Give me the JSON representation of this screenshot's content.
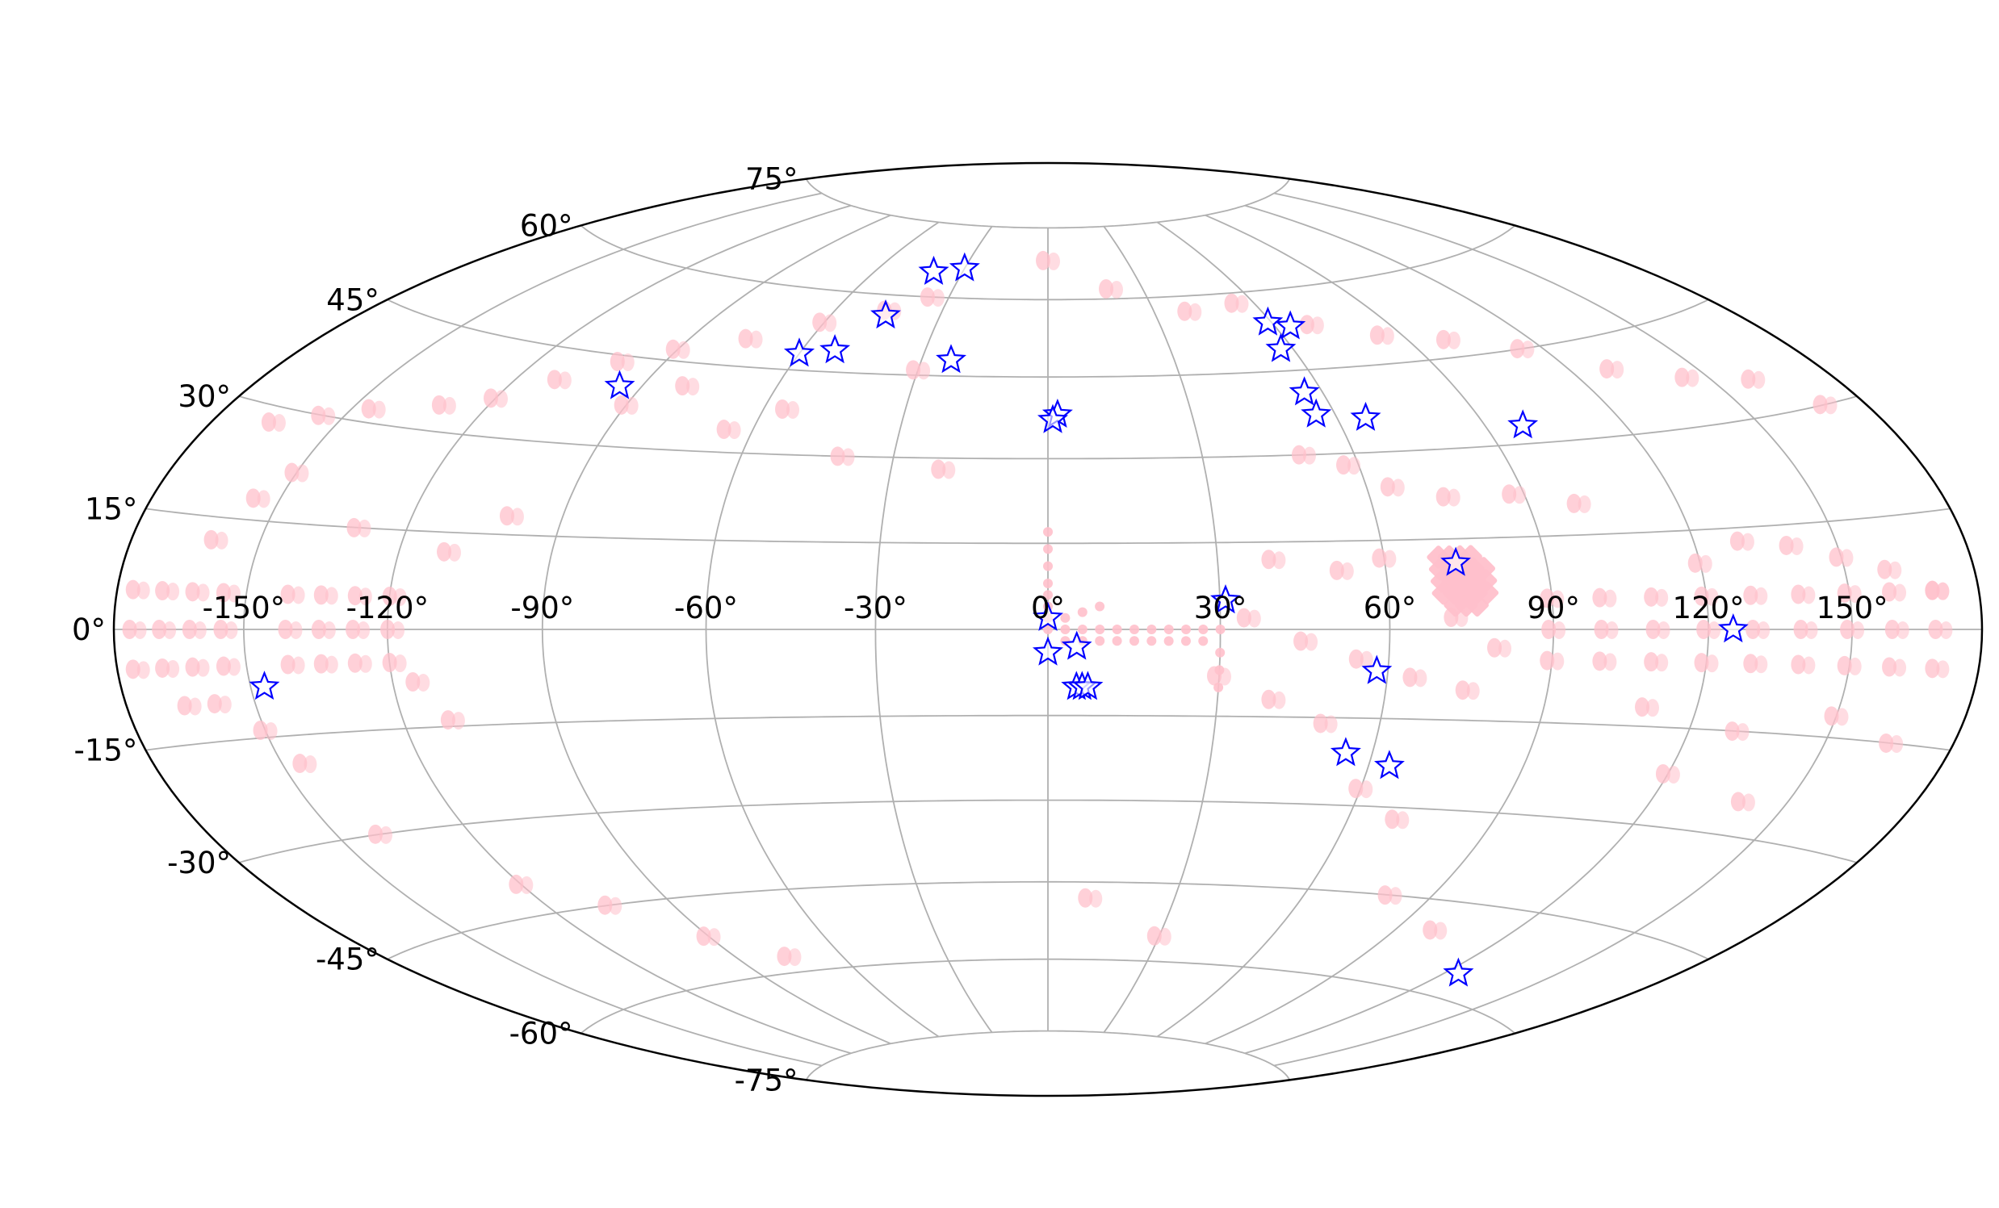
{
  "chart_data": {
    "type": "scatter",
    "projection": "aitoff-hammer",
    "title": "",
    "xlabel": "",
    "ylabel": "",
    "grid": true,
    "legend": "none",
    "xlim": [
      -180,
      180
    ],
    "ylim": [
      -90,
      90
    ],
    "lon_ticks": [
      "-150°",
      "-120°",
      "-90°",
      "-60°",
      "-30°",
      "0°",
      "30°",
      "60°",
      "90°",
      "120°",
      "150°"
    ],
    "lon_tick_values": [
      -150,
      -120,
      -90,
      -60,
      -30,
      0,
      30,
      60,
      90,
      120,
      150
    ],
    "lat_ticks": [
      "-75°",
      "-60°",
      "-45°",
      "-30°",
      "-15°",
      "0°",
      "15°",
      "30°",
      "45°",
      "60°",
      "75°"
    ],
    "lat_tick_values": [
      -75,
      -60,
      -45,
      -30,
      -15,
      0,
      15,
      30,
      45,
      60,
      75
    ],
    "colors": {
      "fields": "#ffc0cb",
      "stars_edge": "#0000ff",
      "grid": "#b0b0b0",
      "frame": "#000000"
    },
    "series": [
      {
        "marker": "ellipse",
        "color": "#ffc0cb",
        "points": [
          [
            -175,
            5
          ],
          [
            -168,
            5
          ],
          [
            -161,
            5
          ],
          [
            -154,
            5
          ],
          [
            -140,
            5
          ],
          [
            -133,
            5
          ],
          [
            -126,
            5
          ],
          [
            -119,
            5
          ],
          [
            -175,
            0
          ],
          [
            -168,
            0
          ],
          [
            -161,
            0
          ],
          [
            -154,
            0
          ],
          [
            -140,
            0
          ],
          [
            -133,
            0
          ],
          [
            -126,
            0
          ],
          [
            -119,
            0
          ],
          [
            -175,
            -5
          ],
          [
            -168,
            -5
          ],
          [
            -161,
            -5
          ],
          [
            -154,
            -5
          ],
          [
            -140,
            -5
          ],
          [
            -133,
            -5
          ],
          [
            -126,
            -5
          ],
          [
            -119,
            -5
          ],
          [
            -165,
            -10
          ],
          [
            -158,
            -10
          ],
          [
            -150,
            -14
          ],
          [
            -145,
            -19
          ],
          [
            -160,
            12
          ],
          [
            -155,
            18
          ],
          [
            -150,
            22
          ],
          [
            -165,
            28
          ],
          [
            -155,
            30
          ],
          [
            -145,
            32
          ],
          [
            -130,
            34
          ],
          [
            -120,
            36
          ],
          [
            -110,
            40
          ],
          [
            -100,
            44
          ],
          [
            -90,
            47
          ],
          [
            -75,
            50
          ],
          [
            -60,
            54
          ],
          [
            -45,
            57
          ],
          [
            -35,
            60
          ],
          [
            -130,
            15
          ],
          [
            -110,
            12
          ],
          [
            -100,
            18
          ],
          [
            -115,
            -8
          ],
          [
            -110,
            -14
          ],
          [
            -90,
            37
          ],
          [
            -80,
            41
          ],
          [
            -65,
            34
          ],
          [
            -55,
            38
          ],
          [
            -40,
            30
          ],
          [
            -20,
            28
          ],
          [
            -30,
            46
          ],
          [
            -120,
            -40
          ],
          [
            -105,
            -45
          ],
          [
            -90,
            -52
          ],
          [
            -75,
            -57
          ],
          [
            -140,
            -30
          ],
          [
            0,
            68
          ],
          [
            20,
            62
          ],
          [
            40,
            57
          ],
          [
            55,
            58
          ],
          [
            70,
            53
          ],
          [
            85,
            50
          ],
          [
            100,
            48
          ],
          [
            115,
            45
          ],
          [
            130,
            40
          ],
          [
            145,
            37
          ],
          [
            160,
            35
          ],
          [
            170,
            30
          ],
          [
            50,
            30
          ],
          [
            58,
            28
          ],
          [
            65,
            24
          ],
          [
            75,
            22
          ],
          [
            88,
            22
          ],
          [
            100,
            20
          ],
          [
            120,
            10
          ],
          [
            130,
            13
          ],
          [
            140,
            12
          ],
          [
            150,
            10
          ],
          [
            160,
            8
          ],
          [
            170,
            5
          ],
          [
            90,
            5
          ],
          [
            100,
            5
          ],
          [
            110,
            5
          ],
          [
            120,
            5
          ],
          [
            130,
            5
          ],
          [
            140,
            5
          ],
          [
            150,
            5
          ],
          [
            160,
            5
          ],
          [
            170,
            5
          ],
          [
            90,
            0
          ],
          [
            100,
            0
          ],
          [
            110,
            0
          ],
          [
            120,
            0
          ],
          [
            130,
            0
          ],
          [
            140,
            0
          ],
          [
            150,
            0
          ],
          [
            160,
            0
          ],
          [
            170,
            0
          ],
          [
            90,
            -5
          ],
          [
            100,
            -5
          ],
          [
            110,
            -5
          ],
          [
            120,
            -5
          ],
          [
            130,
            -5
          ],
          [
            140,
            -5
          ],
          [
            150,
            -5
          ],
          [
            160,
            -5
          ],
          [
            170,
            -5
          ],
          [
            110,
            -12
          ],
          [
            130,
            -15
          ],
          [
            150,
            -12
          ],
          [
            165,
            -15
          ],
          [
            120,
            -22
          ],
          [
            140,
            -25
          ],
          [
            60,
            -27
          ],
          [
            70,
            -32
          ],
          [
            80,
            -45
          ],
          [
            100,
            -50
          ],
          [
            30,
            -55
          ],
          [
            10,
            -48
          ],
          [
            40,
            12
          ],
          [
            52,
            10
          ],
          [
            60,
            12
          ],
          [
            35,
            2
          ],
          [
            45,
            -2
          ],
          [
            55,
            -5
          ],
          [
            65,
            -8
          ],
          [
            75,
            -10
          ],
          [
            30,
            -8
          ],
          [
            40,
            -12
          ],
          [
            50,
            -16
          ],
          [
            80,
            -3
          ],
          [
            72,
            2
          ]
        ]
      },
      {
        "marker": "circle-column",
        "color": "#ffc0cb",
        "points": [
          [
            0,
            17
          ],
          [
            0,
            14
          ],
          [
            0,
            11
          ],
          [
            0,
            8
          ],
          [
            0,
            6
          ],
          [
            0,
            4
          ],
          [
            0,
            2
          ],
          [
            0,
            0
          ],
          [
            3,
            0
          ],
          [
            6,
            0
          ],
          [
            9,
            0
          ],
          [
            12,
            0
          ],
          [
            15,
            0
          ],
          [
            18,
            0
          ],
          [
            21,
            0
          ],
          [
            24,
            0
          ],
          [
            27,
            0
          ],
          [
            30,
            0
          ],
          [
            3,
            -2
          ],
          [
            6,
            -2
          ],
          [
            9,
            -2
          ],
          [
            12,
            -2
          ],
          [
            15,
            -2
          ],
          [
            18,
            -2
          ],
          [
            21,
            -2
          ],
          [
            24,
            -2
          ],
          [
            27,
            -2
          ],
          [
            3,
            2
          ],
          [
            6,
            3
          ],
          [
            9,
            4
          ],
          [
            30,
            -4
          ],
          [
            30,
            -7
          ],
          [
            30,
            -10
          ]
        ]
      },
      {
        "marker": "square-grid",
        "color": "#ffc0cb",
        "points": [
          [
            70,
            12
          ],
          [
            72,
            12
          ],
          [
            74,
            12
          ],
          [
            76,
            12
          ],
          [
            70,
            10
          ],
          [
            72,
            10
          ],
          [
            74,
            10
          ],
          [
            76,
            10
          ],
          [
            78,
            10
          ],
          [
            70,
            8
          ],
          [
            72,
            8
          ],
          [
            74,
            8
          ],
          [
            76,
            8
          ],
          [
            78,
            8
          ],
          [
            70,
            6
          ],
          [
            72,
            6
          ],
          [
            74,
            6
          ],
          [
            76,
            6
          ],
          [
            78,
            6
          ],
          [
            72,
            4
          ],
          [
            74,
            4
          ],
          [
            76,
            4
          ]
        ]
      },
      {
        "marker": "star",
        "color": "#ffffff",
        "edgecolor": "#0000ff",
        "points": [
          [
            -40,
            65
          ],
          [
            -30,
            66
          ],
          [
            -45,
            56
          ],
          [
            -60,
            48
          ],
          [
            -52,
            49
          ],
          [
            -23,
            48
          ],
          [
            -95,
            40
          ],
          [
            2,
            38
          ],
          [
            1,
            37
          ],
          [
            59,
            54
          ],
          [
            64,
            53
          ],
          [
            57,
            49
          ],
          [
            56,
            41
          ],
          [
            56,
            37
          ],
          [
            66,
            36
          ],
          [
            98,
            33
          ],
          [
            73,
            11
          ],
          [
            31,
            5
          ],
          [
            0,
            2
          ],
          [
            125,
            0
          ],
          [
            -147,
            -8
          ],
          [
            0,
            -4
          ],
          [
            5,
            -3
          ],
          [
            58,
            -7
          ],
          [
            5,
            -10
          ],
          [
            6,
            -10
          ],
          [
            7,
            -10
          ],
          [
            55,
            -21
          ],
          [
            64,
            -23
          ],
          [
            124,
            -56
          ]
        ]
      }
    ]
  }
}
